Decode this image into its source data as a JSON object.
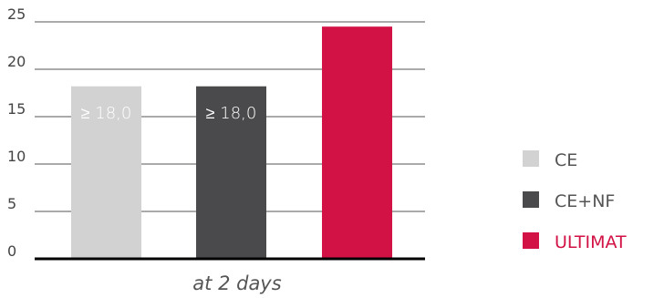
{
  "chart_data": {
    "type": "bar",
    "x_category": "at 2 days",
    "yticks": [
      "0",
      "5",
      "10",
      "15",
      "20",
      "25"
    ],
    "ylim": [
      0,
      25
    ],
    "grid": true,
    "legend_position": "right",
    "series": [
      {
        "name": "CE",
        "value": 18.2,
        "color": "#d2d2d2",
        "label": "≥ 18,0",
        "legend_text_color": "#555555"
      },
      {
        "name": "CE+NF",
        "value": 18.2,
        "color": "#4a4a4c",
        "label": "≥ 18,0",
        "legend_text_color": "#555555"
      },
      {
        "name": "ULTIMAT",
        "value": 24.5,
        "color": "#d21244",
        "label": "",
        "legend_text_color": "#d21244"
      }
    ]
  }
}
